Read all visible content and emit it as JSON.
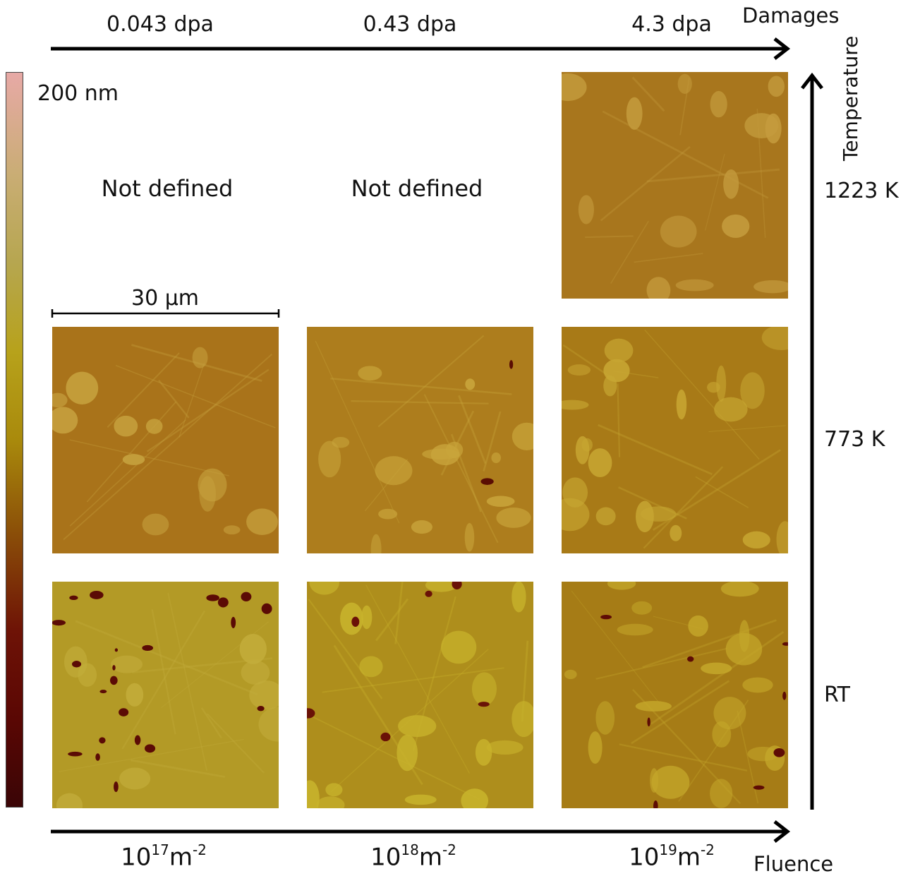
{
  "damages": {
    "axis_label": "Damages",
    "columns": [
      "0.043 dpa",
      "0.43 dpa",
      "4.3 dpa"
    ]
  },
  "temperature": {
    "axis_label": "Temperature",
    "rows": [
      "1223 K",
      "773 K",
      "RT"
    ]
  },
  "fluence": {
    "axis_label": "Fluence",
    "columns": [
      {
        "base": "10",
        "exp": "17",
        "unit": "m",
        "unit_exp": "-2"
      },
      {
        "base": "10",
        "exp": "18",
        "unit": "m",
        "unit_exp": "-2"
      },
      {
        "base": "10",
        "exp": "19",
        "unit": "m",
        "unit_exp": "-2"
      }
    ]
  },
  "colorbar": {
    "max_label": "200 nm"
  },
  "scale_bar": {
    "label": "30 µm"
  },
  "not_defined": [
    "Not defined",
    "Not defined"
  ],
  "panels": {
    "1223K_4.3dpa": {
      "base": "#a8761d",
      "blob": "#c49b3d",
      "dark": "#6b1a05",
      "dark_amount": 0,
      "seed": 3,
      "blobs": 14
    },
    "773K_0.043dpa": {
      "base": "#a9731a",
      "blob": "#c6a13e",
      "dark": "#6b1a05",
      "dark_amount": 0,
      "seed": 7,
      "blobs": 12
    },
    "773K_0.43dpa": {
      "base": "#ad7d1d",
      "blob": "#c9a53b",
      "dark": "#5a0d03",
      "dark_amount": 2,
      "seed": 11,
      "blobs": 16
    },
    "773K_4.3dpa": {
      "base": "#a87a17",
      "blob": "#c7a632",
      "dark": "#6b1a05",
      "dark_amount": 0,
      "seed": 19,
      "blobs": 22
    },
    "RT_0.043dpa": {
      "base": "#b39a26",
      "blob": "#c3ad3b",
      "dark": "#5b0b05",
      "dark_amount": 22,
      "seed": 23,
      "blobs": 10
    },
    "RT_0.43dpa": {
      "base": "#ae8e1c",
      "blob": "#c8b32c",
      "dark": "#6a1207",
      "dark_amount": 6,
      "seed": 29,
      "blobs": 18
    },
    "RT_4.3dpa": {
      "base": "#a67c16",
      "blob": "#c4a72a",
      "dark": "#5e0c05",
      "dark_amount": 8,
      "seed": 31,
      "blobs": 20
    }
  }
}
